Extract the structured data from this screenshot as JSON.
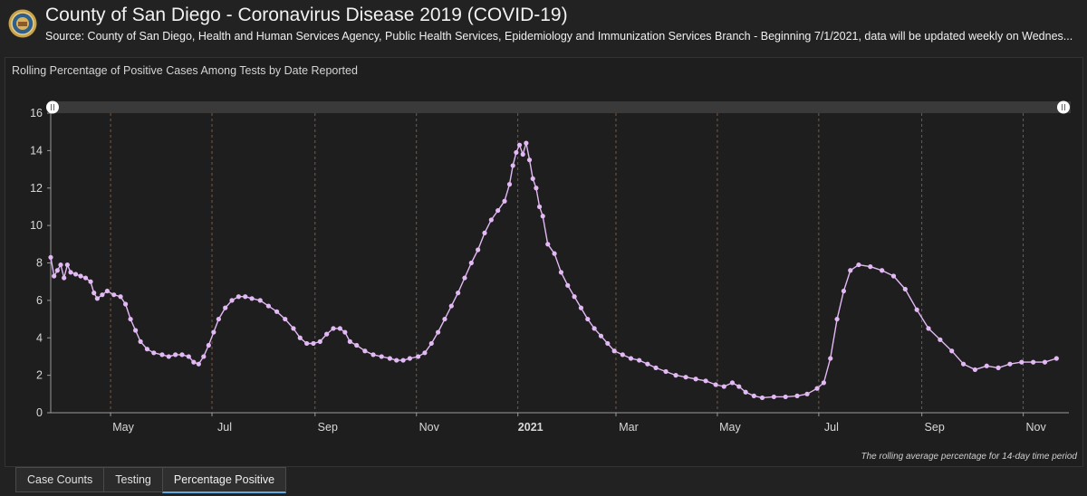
{
  "header": {
    "title": "County of San Diego - Coronavirus Disease 2019 (COVID-19)",
    "subtitle": "Source: County of San Diego, Health and Human Services Agency, Public Health Services, Epidemiology and Immunization Services Branch - Beginning 7/1/2021, data will be updated weekly on Wednes..."
  },
  "panel": {
    "title": "Rolling Percentage of Positive Cases Among Tests by Date Reported",
    "footnote": "The rolling average percentage for 14-day time period"
  },
  "tabs": [
    {
      "label": "Case Counts"
    },
    {
      "label": "Testing"
    },
    {
      "label": "Percentage Positive"
    }
  ],
  "colors": {
    "series": "#e3b9f5",
    "grid_vertical": "#a0643a",
    "background": "#1e1e1e",
    "active_tab": "#5fa8e0"
  },
  "chart_data": {
    "type": "line",
    "title": "Rolling Percentage of Positive Cases Among Tests by Date Reported",
    "ylim": [
      0,
      16
    ],
    "xlim": [
      "2020-03-26",
      "2021-11-23"
    ],
    "y_ticks": [
      0,
      2,
      4,
      6,
      8,
      10,
      12,
      14,
      16
    ],
    "x_ticks": [
      {
        "date": "2020-05-01",
        "label": "May"
      },
      {
        "date": "2020-07-01",
        "label": "Jul"
      },
      {
        "date": "2020-09-01",
        "label": "Sep"
      },
      {
        "date": "2020-11-01",
        "label": "Nov"
      },
      {
        "date": "2021-01-01",
        "label": "2021",
        "bold": true
      },
      {
        "date": "2021-03-01",
        "label": "Mar"
      },
      {
        "date": "2021-05-01",
        "label": "May"
      },
      {
        "date": "2021-07-01",
        "label": "Jul"
      },
      {
        "date": "2021-09-01",
        "label": "Sep"
      },
      {
        "date": "2021-11-01",
        "label": "Nov"
      }
    ],
    "grid": "vertical-dashed",
    "legend": "none",
    "series": [
      {
        "points": [
          [
            "2020-03-26",
            8.3
          ],
          [
            "2020-03-28",
            7.3
          ],
          [
            "2020-03-30",
            7.6
          ],
          [
            "2020-04-01",
            7.9
          ],
          [
            "2020-04-03",
            7.2
          ],
          [
            "2020-04-05",
            7.9
          ],
          [
            "2020-04-07",
            7.5
          ],
          [
            "2020-04-10",
            7.4
          ],
          [
            "2020-04-13",
            7.3
          ],
          [
            "2020-04-16",
            7.2
          ],
          [
            "2020-04-19",
            7.0
          ],
          [
            "2020-04-21",
            6.4
          ],
          [
            "2020-04-23",
            6.1
          ],
          [
            "2020-04-26",
            6.3
          ],
          [
            "2020-04-29",
            6.5
          ],
          [
            "2020-05-03",
            6.3
          ],
          [
            "2020-05-07",
            6.2
          ],
          [
            "2020-05-10",
            5.8
          ],
          [
            "2020-05-13",
            5.0
          ],
          [
            "2020-05-16",
            4.4
          ],
          [
            "2020-05-19",
            3.8
          ],
          [
            "2020-05-23",
            3.4
          ],
          [
            "2020-05-27",
            3.2
          ],
          [
            "2020-06-01",
            3.1
          ],
          [
            "2020-06-05",
            3.0
          ],
          [
            "2020-06-09",
            3.1
          ],
          [
            "2020-06-13",
            3.1
          ],
          [
            "2020-06-17",
            3.0
          ],
          [
            "2020-06-20",
            2.7
          ],
          [
            "2020-06-23",
            2.6
          ],
          [
            "2020-06-26",
            3.0
          ],
          [
            "2020-06-29",
            3.6
          ],
          [
            "2020-07-02",
            4.3
          ],
          [
            "2020-07-05",
            5.0
          ],
          [
            "2020-07-09",
            5.6
          ],
          [
            "2020-07-13",
            6.0
          ],
          [
            "2020-07-17",
            6.2
          ],
          [
            "2020-07-21",
            6.2
          ],
          [
            "2020-07-25",
            6.1
          ],
          [
            "2020-07-30",
            6.0
          ],
          [
            "2020-08-04",
            5.7
          ],
          [
            "2020-08-09",
            5.4
          ],
          [
            "2020-08-14",
            5.0
          ],
          [
            "2020-08-19",
            4.5
          ],
          [
            "2020-08-23",
            4.0
          ],
          [
            "2020-08-27",
            3.7
          ],
          [
            "2020-08-31",
            3.7
          ],
          [
            "2020-09-04",
            3.8
          ],
          [
            "2020-09-08",
            4.2
          ],
          [
            "2020-09-12",
            4.5
          ],
          [
            "2020-09-16",
            4.5
          ],
          [
            "2020-09-19",
            4.3
          ],
          [
            "2020-09-22",
            3.8
          ],
          [
            "2020-09-26",
            3.6
          ],
          [
            "2020-10-01",
            3.3
          ],
          [
            "2020-10-06",
            3.1
          ],
          [
            "2020-10-11",
            3.0
          ],
          [
            "2020-10-16",
            2.9
          ],
          [
            "2020-10-20",
            2.8
          ],
          [
            "2020-10-24",
            2.8
          ],
          [
            "2020-10-28",
            2.9
          ],
          [
            "2020-11-02",
            3.0
          ],
          [
            "2020-11-06",
            3.2
          ],
          [
            "2020-11-10",
            3.7
          ],
          [
            "2020-11-14",
            4.3
          ],
          [
            "2020-11-18",
            5.0
          ],
          [
            "2020-11-22",
            5.7
          ],
          [
            "2020-11-26",
            6.4
          ],
          [
            "2020-11-30",
            7.2
          ],
          [
            "2020-12-04",
            8.0
          ],
          [
            "2020-12-08",
            8.7
          ],
          [
            "2020-12-12",
            9.6
          ],
          [
            "2020-12-16",
            10.3
          ],
          [
            "2020-12-20",
            10.8
          ],
          [
            "2020-12-24",
            11.3
          ],
          [
            "2020-12-27",
            12.2
          ],
          [
            "2020-12-29",
            13.2
          ],
          [
            "2020-12-31",
            13.9
          ],
          [
            "2021-01-02",
            14.3
          ],
          [
            "2021-01-04",
            13.8
          ],
          [
            "2021-01-06",
            14.4
          ],
          [
            "2021-01-08",
            13.5
          ],
          [
            "2021-01-10",
            12.5
          ],
          [
            "2021-01-12",
            12.0
          ],
          [
            "2021-01-14",
            11.0
          ],
          [
            "2021-01-16",
            10.5
          ],
          [
            "2021-01-19",
            9.0
          ],
          [
            "2021-01-23",
            8.5
          ],
          [
            "2021-01-27",
            7.5
          ],
          [
            "2021-01-31",
            6.8
          ],
          [
            "2021-02-04",
            6.2
          ],
          [
            "2021-02-08",
            5.6
          ],
          [
            "2021-02-12",
            5.0
          ],
          [
            "2021-02-16",
            4.5
          ],
          [
            "2021-02-20",
            4.1
          ],
          [
            "2021-02-24",
            3.7
          ],
          [
            "2021-02-28",
            3.3
          ],
          [
            "2021-03-05",
            3.1
          ],
          [
            "2021-03-10",
            2.9
          ],
          [
            "2021-03-15",
            2.8
          ],
          [
            "2021-03-20",
            2.6
          ],
          [
            "2021-03-25",
            2.4
          ],
          [
            "2021-03-31",
            2.2
          ],
          [
            "2021-04-06",
            2.0
          ],
          [
            "2021-04-12",
            1.9
          ],
          [
            "2021-04-18",
            1.8
          ],
          [
            "2021-04-24",
            1.7
          ],
          [
            "2021-04-30",
            1.5
          ],
          [
            "2021-05-05",
            1.4
          ],
          [
            "2021-05-10",
            1.6
          ],
          [
            "2021-05-14",
            1.4
          ],
          [
            "2021-05-18",
            1.1
          ],
          [
            "2021-05-23",
            0.9
          ],
          [
            "2021-05-28",
            0.8
          ],
          [
            "2021-06-04",
            0.85
          ],
          [
            "2021-06-11",
            0.85
          ],
          [
            "2021-06-18",
            0.9
          ],
          [
            "2021-06-24",
            1.0
          ],
          [
            "2021-06-30",
            1.3
          ],
          [
            "2021-07-04",
            1.6
          ],
          [
            "2021-07-08",
            2.9
          ],
          [
            "2021-07-12",
            5.0
          ],
          [
            "2021-07-16",
            6.5
          ],
          [
            "2021-07-20",
            7.6
          ],
          [
            "2021-07-25",
            7.9
          ],
          [
            "2021-08-01",
            7.8
          ],
          [
            "2021-08-08",
            7.6
          ],
          [
            "2021-08-15",
            7.3
          ],
          [
            "2021-08-22",
            6.6
          ],
          [
            "2021-08-29",
            5.5
          ],
          [
            "2021-09-05",
            4.5
          ],
          [
            "2021-09-12",
            3.9
          ],
          [
            "2021-09-19",
            3.3
          ],
          [
            "2021-09-26",
            2.6
          ],
          [
            "2021-10-03",
            2.3
          ],
          [
            "2021-10-10",
            2.5
          ],
          [
            "2021-10-17",
            2.4
          ],
          [
            "2021-10-24",
            2.6
          ],
          [
            "2021-10-31",
            2.7
          ],
          [
            "2021-11-07",
            2.7
          ],
          [
            "2021-11-14",
            2.7
          ],
          [
            "2021-11-21",
            2.9
          ]
        ]
      }
    ]
  }
}
